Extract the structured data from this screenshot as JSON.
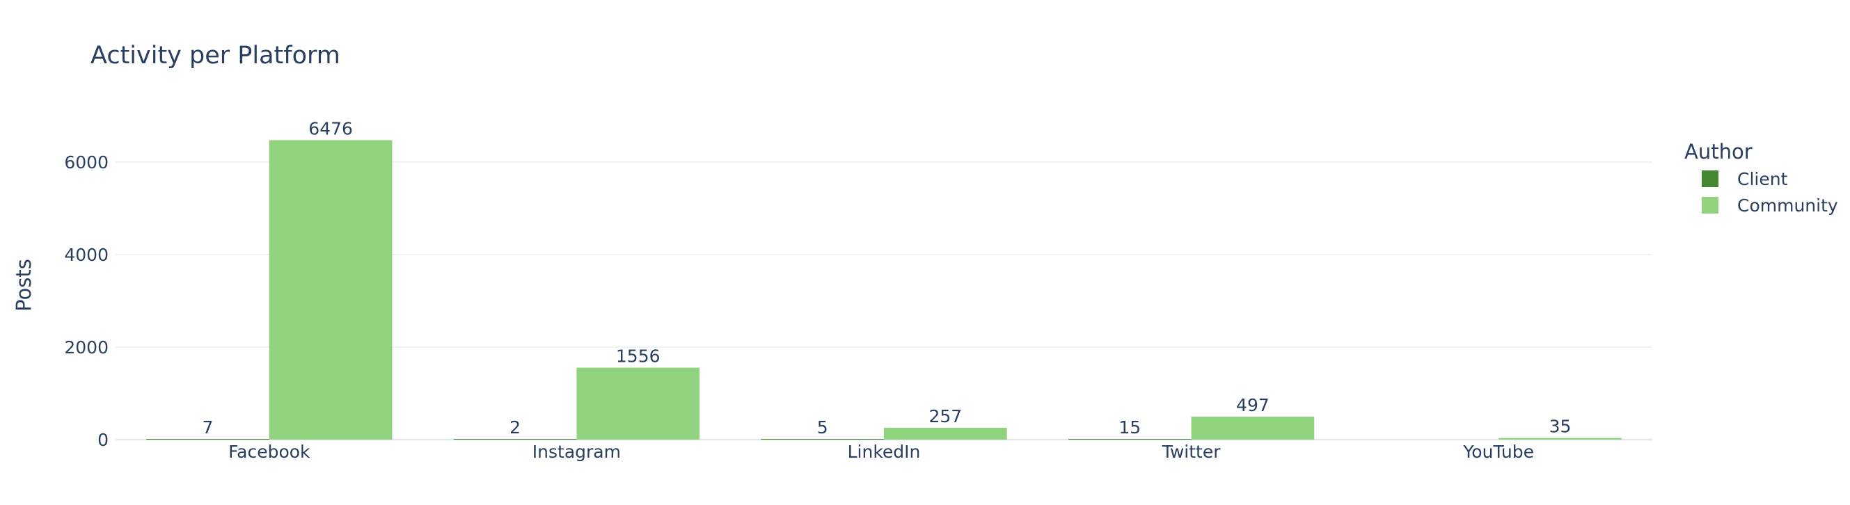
{
  "chart_data": {
    "type": "bar",
    "title": "Activity per Platform",
    "xlabel": "",
    "ylabel": "Posts",
    "categories": [
      "Facebook",
      "Instagram",
      "LinkedIn",
      "Twitter",
      "YouTube"
    ],
    "series": [
      {
        "name": "Client",
        "values": [
          7,
          2,
          5,
          15,
          null
        ],
        "color": "#43872e"
      },
      {
        "name": "Community",
        "values": [
          6476,
          1556,
          257,
          497,
          35
        ],
        "color": "#90d27e"
      }
    ],
    "ylim": [
      0,
      7100
    ],
    "yticks": [
      0,
      2000,
      4000,
      6000
    ],
    "grid": true,
    "legend": {
      "title": "Author",
      "placement": "right"
    }
  }
}
